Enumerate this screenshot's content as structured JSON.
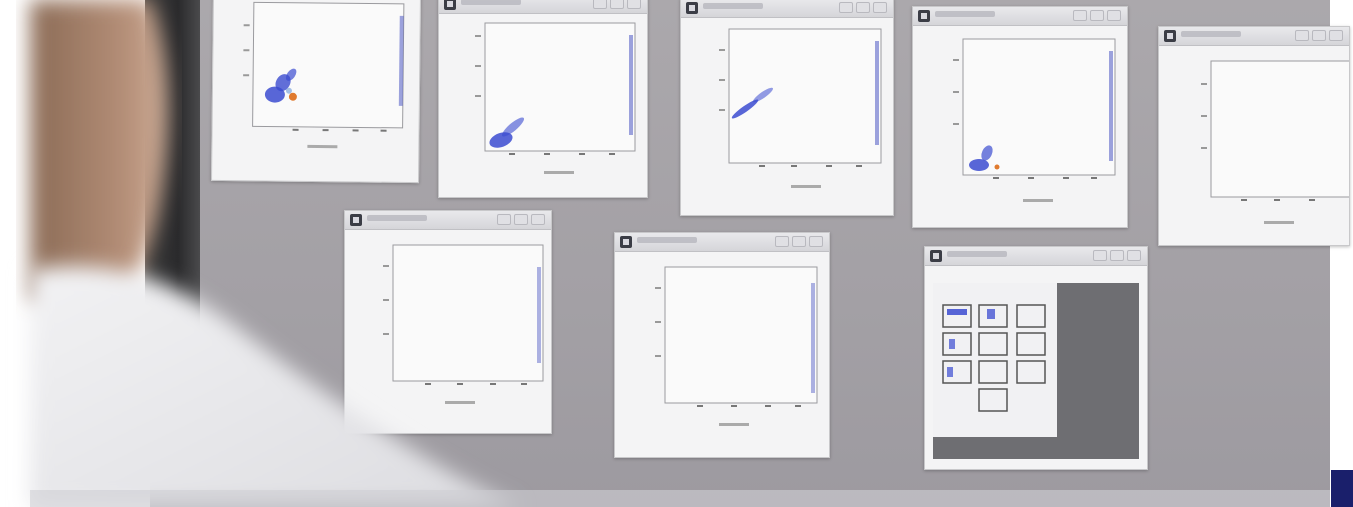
{
  "scene": {
    "description_free": true
  },
  "colors": {
    "screen_bg": "#a6a3a8",
    "window_bg": "#f4f4f5",
    "scatter_blue": "#3b4bd0",
    "scatter_orange": "#e07a2e",
    "corner_block": "#1a1f6b"
  },
  "icons": {
    "window_icon": "window-icon",
    "thumbnail_icon": "thumbnail-icon"
  }
}
